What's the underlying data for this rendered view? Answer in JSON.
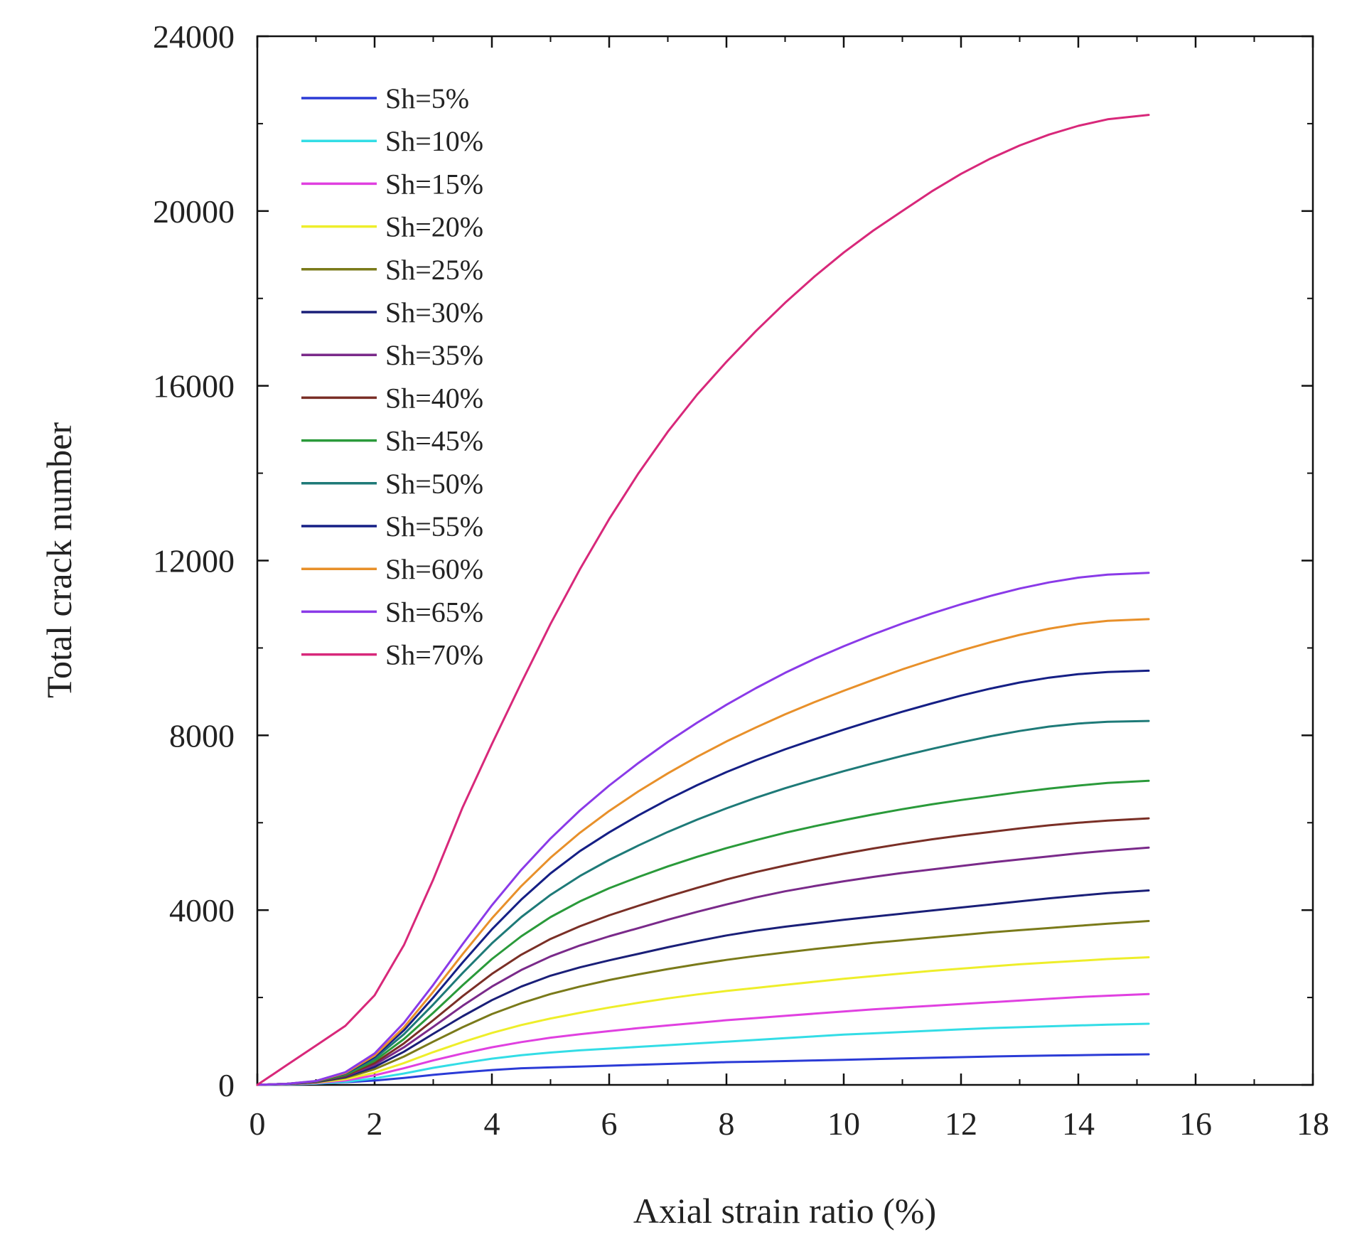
{
  "chart_data": {
    "type": "line",
    "title": "",
    "xlabel": "Axial strain ratio (%)",
    "ylabel": "Total crack number",
    "xlim": [
      0,
      18
    ],
    "ylim": [
      0,
      24000
    ],
    "x_ticks": [
      0,
      2,
      4,
      6,
      8,
      10,
      12,
      14,
      16,
      18
    ],
    "y_ticks": [
      0,
      4000,
      8000,
      12000,
      16000,
      20000,
      24000
    ],
    "grid": false,
    "legend_position": "top-left",
    "x": [
      0,
      0.5,
      1,
      1.5,
      2,
      2.5,
      3,
      3.5,
      4,
      4.5,
      5,
      5.5,
      6,
      6.5,
      7,
      7.5,
      8,
      8.5,
      9,
      9.5,
      10,
      10.5,
      11,
      11.5,
      12,
      12.5,
      13,
      13.5,
      14,
      14.5,
      15.2
    ],
    "series": [
      {
        "name": "Sh=5%",
        "color": "#2b3bd6",
        "values": [
          0,
          10,
          30,
          60,
          100,
          160,
          230,
          290,
          340,
          380,
          400,
          420,
          440,
          460,
          480,
          500,
          520,
          530,
          545,
          560,
          575,
          590,
          605,
          620,
          635,
          650,
          660,
          670,
          680,
          690,
          700
        ]
      },
      {
        "name": "Sh=10%",
        "color": "#33dde6",
        "values": [
          0,
          10,
          30,
          70,
          150,
          260,
          390,
          500,
          600,
          680,
          740,
          790,
          830,
          870,
          910,
          950,
          990,
          1030,
          1070,
          1110,
          1150,
          1180,
          1210,
          1240,
          1270,
          1300,
          1320,
          1340,
          1360,
          1380,
          1400
        ]
      },
      {
        "name": "Sh=15%",
        "color": "#e040e0",
        "values": [
          0,
          15,
          40,
          100,
          220,
          380,
          560,
          720,
          860,
          980,
          1080,
          1160,
          1230,
          1300,
          1360,
          1420,
          1480,
          1530,
          1580,
          1630,
          1680,
          1730,
          1770,
          1810,
          1850,
          1890,
          1930,
          1970,
          2010,
          2040,
          2080
        ]
      },
      {
        "name": "Sh=20%",
        "color": "#eeee2a",
        "values": [
          0,
          20,
          50,
          130,
          280,
          500,
          750,
          980,
          1190,
          1370,
          1520,
          1650,
          1770,
          1880,
          1980,
          2070,
          2150,
          2220,
          2290,
          2360,
          2430,
          2490,
          2550,
          2610,
          2660,
          2710,
          2760,
          2800,
          2840,
          2880,
          2920
        ]
      },
      {
        "name": "Sh=25%",
        "color": "#7a7a1a",
        "values": [
          0,
          20,
          60,
          160,
          360,
          650,
          990,
          1320,
          1620,
          1870,
          2080,
          2250,
          2400,
          2530,
          2650,
          2760,
          2860,
          2950,
          3030,
          3110,
          3180,
          3250,
          3310,
          3370,
          3430,
          3490,
          3540,
          3590,
          3640,
          3690,
          3750
        ]
      },
      {
        "name": "Sh=30%",
        "color": "#1a1f78",
        "values": [
          0,
          20,
          60,
          180,
          410,
          760,
          1170,
          1570,
          1940,
          2250,
          2500,
          2690,
          2850,
          3000,
          3150,
          3290,
          3420,
          3530,
          3620,
          3700,
          3780,
          3850,
          3920,
          3990,
          4060,
          4130,
          4200,
          4270,
          4330,
          4390,
          4450
        ]
      },
      {
        "name": "Sh=35%",
        "color": "#7a2a8a",
        "values": [
          0,
          25,
          70,
          200,
          460,
          860,
          1330,
          1810,
          2250,
          2630,
          2940,
          3190,
          3400,
          3590,
          3780,
          3960,
          4130,
          4290,
          4430,
          4550,
          4660,
          4760,
          4850,
          4930,
          5010,
          5090,
          5160,
          5230,
          5300,
          5360,
          5430
        ]
      },
      {
        "name": "Sh=40%",
        "color": "#7a2f26",
        "values": [
          0,
          25,
          70,
          210,
          500,
          950,
          1480,
          2030,
          2540,
          2980,
          3340,
          3630,
          3880,
          4100,
          4310,
          4510,
          4700,
          4870,
          5020,
          5160,
          5290,
          5410,
          5520,
          5620,
          5710,
          5790,
          5870,
          5940,
          6000,
          6050,
          6100
        ]
      },
      {
        "name": "Sh=45%",
        "color": "#2a9a3a",
        "values": [
          0,
          25,
          75,
          230,
          550,
          1050,
          1650,
          2280,
          2880,
          3400,
          3840,
          4200,
          4500,
          4760,
          5000,
          5220,
          5420,
          5600,
          5770,
          5920,
          6060,
          6190,
          6310,
          6420,
          6520,
          6610,
          6700,
          6780,
          6850,
          6910,
          6960
        ]
      },
      {
        "name": "Sh=50%",
        "color": "#1e7a78",
        "values": [
          0,
          25,
          80,
          250,
          600,
          1160,
          1840,
          2560,
          3240,
          3840,
          4350,
          4780,
          5150,
          5480,
          5790,
          6070,
          6330,
          6570,
          6790,
          6990,
          7180,
          7360,
          7530,
          7690,
          7840,
          7980,
          8100,
          8200,
          8270,
          8310,
          8330
        ]
      },
      {
        "name": "Sh=55%",
        "color": "#151f85",
        "values": [
          0,
          25,
          80,
          260,
          640,
          1250,
          2000,
          2800,
          3560,
          4240,
          4840,
          5350,
          5780,
          6170,
          6530,
          6860,
          7160,
          7430,
          7680,
          7910,
          8130,
          8340,
          8540,
          8730,
          8910,
          9070,
          9210,
          9320,
          9400,
          9450,
          9480
        ]
      },
      {
        "name": "Sh=60%",
        "color": "#e8902a",
        "values": [
          0,
          25,
          85,
          270,
          670,
          1320,
          2130,
          2990,
          3810,
          4550,
          5200,
          5770,
          6270,
          6720,
          7130,
          7510,
          7860,
          8180,
          8480,
          8760,
          9020,
          9270,
          9510,
          9730,
          9940,
          10130,
          10300,
          10440,
          10550,
          10620,
          10660
        ]
      },
      {
        "name": "Sh=65%",
        "color": "#8a3ae8",
        "values": [
          0,
          25,
          90,
          290,
          720,
          1420,
          2290,
          3220,
          4110,
          4920,
          5640,
          6280,
          6850,
          7370,
          7850,
          8290,
          8700,
          9080,
          9430,
          9750,
          10040,
          10310,
          10560,
          10790,
          11000,
          11190,
          11360,
          11500,
          11610,
          11680,
          11720
        ]
      },
      {
        "name": "Sh=70%",
        "color": "#d8287a",
        "values": [
          0,
          450,
          900,
          1350,
          2050,
          3200,
          4700,
          6350,
          7800,
          9200,
          10550,
          11800,
          12950,
          14000,
          14950,
          15800,
          16550,
          17250,
          17900,
          18500,
          19050,
          19550,
          20000,
          20450,
          20850,
          21200,
          21500,
          21750,
          21950,
          22100,
          22200
        ]
      }
    ]
  }
}
